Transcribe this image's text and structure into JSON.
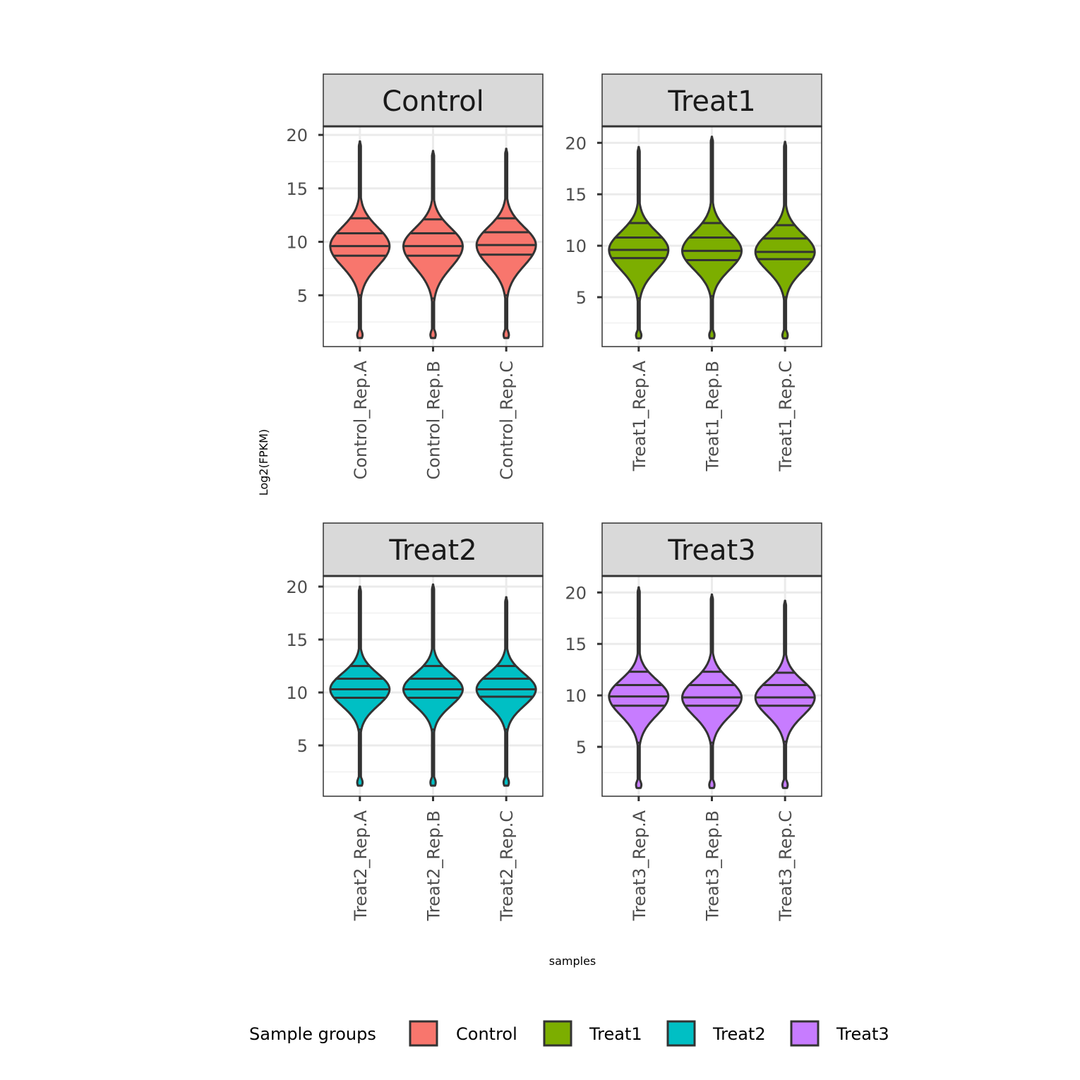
{
  "chart_data": {
    "type": "violin",
    "xlabel": "samples",
    "ylabel": "Log2(FPKM)",
    "legend": {
      "title": "Sample groups",
      "position": "bottom",
      "items": [
        {
          "label": "Control",
          "color": "#F8766D"
        },
        {
          "label": "Treat1",
          "color": "#7CAE00"
        },
        {
          "label": "Treat2",
          "color": "#00BFC4"
        },
        {
          "label": "Treat3",
          "color": "#C77CFF"
        }
      ]
    },
    "grid": true,
    "facets": [
      {
        "title": "Control",
        "color": "#F8766D",
        "ylim": [
          0.2,
          20.8
        ],
        "yticks": [
          5,
          10,
          15,
          20
        ],
        "samples": [
          {
            "name": "Control_Rep.A",
            "min": 1.0,
            "max": 19.4,
            "q25": 8.7,
            "median": 9.6,
            "q75": 10.8,
            "q90": 12.2,
            "q10": 5.0
          },
          {
            "name": "Control_Rep.B",
            "min": 1.0,
            "max": 18.5,
            "q25": 8.7,
            "median": 9.6,
            "q75": 10.8,
            "q90": 12.1,
            "q10": 4.7
          },
          {
            "name": "Control_Rep.C",
            "min": 1.0,
            "max": 18.7,
            "q25": 8.8,
            "median": 9.7,
            "q75": 10.9,
            "q90": 12.2,
            "q10": 5.0
          }
        ]
      },
      {
        "title": "Treat1",
        "color": "#7CAE00",
        "ylim": [
          0.2,
          21.6
        ],
        "yticks": [
          5,
          10,
          15,
          20
        ],
        "samples": [
          {
            "name": "Treat1_Rep.A",
            "min": 1.0,
            "max": 19.6,
            "q25": 8.8,
            "median": 9.6,
            "q75": 10.8,
            "q90": 12.2,
            "q10": 4.9
          },
          {
            "name": "Treat1_Rep.B",
            "min": 1.0,
            "max": 20.6,
            "q25": 8.6,
            "median": 9.5,
            "q75": 10.8,
            "q90": 12.2,
            "q10": 5.1
          },
          {
            "name": "Treat1_Rep.C",
            "min": 1.0,
            "max": 20.1,
            "q25": 8.7,
            "median": 9.4,
            "q75": 10.7,
            "q90": 12.0,
            "q10": 5.0
          }
        ]
      },
      {
        "title": "Treat2",
        "color": "#00BFC4",
        "ylim": [
          0.2,
          21.0
        ],
        "yticks": [
          5,
          10,
          15,
          20
        ],
        "samples": [
          {
            "name": "Treat2_Rep.A",
            "min": 1.2,
            "max": 20.0,
            "q25": 9.5,
            "median": 10.3,
            "q75": 11.3,
            "q90": 12.5,
            "q10": 6.5
          },
          {
            "name": "Treat2_Rep.B",
            "min": 1.2,
            "max": 20.2,
            "q25": 9.5,
            "median": 10.3,
            "q75": 11.3,
            "q90": 12.5,
            "q10": 6.5
          },
          {
            "name": "Treat2_Rep.C",
            "min": 1.2,
            "max": 19.0,
            "q25": 9.6,
            "median": 10.3,
            "q75": 11.3,
            "q90": 12.5,
            "q10": 6.5
          }
        ]
      },
      {
        "title": "Treat3",
        "color": "#C77CFF",
        "ylim": [
          0.2,
          21.6
        ],
        "yticks": [
          5,
          10,
          15,
          20
        ],
        "samples": [
          {
            "name": "Treat3_Rep.A",
            "min": 1.0,
            "max": 20.5,
            "q25": 9.0,
            "median": 9.9,
            "q75": 11.0,
            "q90": 12.3,
            "q10": 5.4
          },
          {
            "name": "Treat3_Rep.B",
            "min": 1.0,
            "max": 19.8,
            "q25": 9.0,
            "median": 9.8,
            "q75": 11.0,
            "q90": 12.3,
            "q10": 5.4
          },
          {
            "name": "Treat3_Rep.C",
            "min": 1.0,
            "max": 19.2,
            "q25": 9.0,
            "median": 9.8,
            "q75": 11.0,
            "q90": 12.2,
            "q10": 5.5
          }
        ]
      }
    ]
  }
}
